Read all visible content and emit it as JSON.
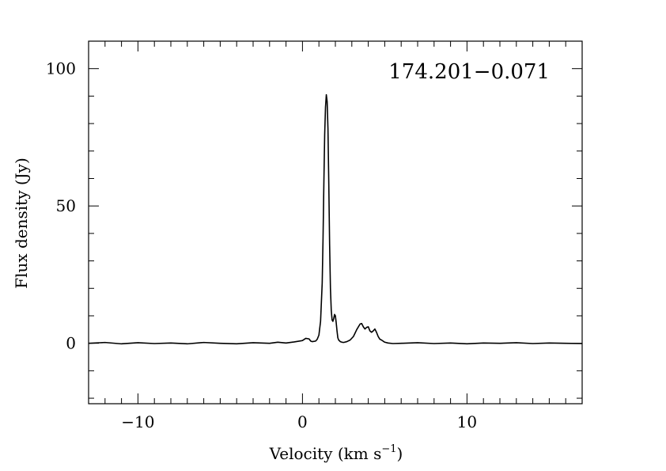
{
  "chart_data": {
    "type": "line",
    "title": "174.201−0.071",
    "xlabel": "Velocity (km s",
    "xlabel_sup": "−1",
    "xlabel_close": ")",
    "ylabel": "Flux density (Jy)",
    "xlim": [
      -13,
      17
    ],
    "ylim": [
      -22,
      110
    ],
    "x_major_ticks": [
      -10,
      0,
      10
    ],
    "x_tick_labels": [
      "−10",
      "0",
      "10"
    ],
    "x_minor_step": 1,
    "y_major_ticks": [
      0,
      50,
      100
    ],
    "y_tick_labels": [
      "0",
      "50",
      "100"
    ],
    "y_minor_step": 10,
    "grid": false,
    "series": [
      {
        "color": "#000000",
        "x": [
          -13.0,
          -12.0,
          -11.0,
          -10.0,
          -9.0,
          -8.0,
          -7.0,
          -6.0,
          -5.0,
          -4.0,
          -3.0,
          -2.0,
          -1.5,
          -1.0,
          -0.5,
          0.0,
          0.2,
          0.4,
          0.5,
          0.6,
          0.8,
          0.9,
          1.0,
          1.1,
          1.2,
          1.25,
          1.3,
          1.35,
          1.4,
          1.45,
          1.5,
          1.55,
          1.6,
          1.65,
          1.7,
          1.75,
          1.8,
          1.85,
          1.9,
          1.95,
          2.0,
          2.05,
          2.1,
          2.15,
          2.2,
          2.3,
          2.4,
          2.5,
          2.7,
          2.9,
          3.1,
          3.3,
          3.5,
          3.6,
          3.7,
          3.8,
          3.9,
          4.0,
          4.1,
          4.2,
          4.3,
          4.4,
          4.5,
          4.6,
          4.7,
          4.8,
          5.0,
          5.2,
          5.5,
          6.0,
          7.0,
          8.0,
          9.0,
          10.0,
          11.0,
          12.0,
          13.0,
          14.0,
          15.0,
          16.0,
          17.0
        ],
        "y": [
          0.0,
          0.3,
          -0.2,
          0.2,
          -0.1,
          0.1,
          -0.2,
          0.3,
          0.0,
          -0.2,
          0.2,
          0.0,
          0.4,
          0.1,
          0.5,
          1.0,
          1.8,
          1.6,
          0.8,
          0.6,
          0.8,
          1.5,
          3.0,
          8.0,
          22.0,
          38.0,
          58.0,
          76.0,
          86.0,
          90.5,
          88.0,
          78.0,
          58.0,
          36.0,
          20.0,
          12.0,
          8.5,
          8.0,
          9.0,
          10.5,
          10.0,
          7.5,
          4.5,
          2.0,
          1.2,
          0.6,
          0.4,
          0.3,
          0.6,
          1.2,
          2.5,
          5.0,
          7.0,
          7.2,
          6.0,
          5.2,
          5.8,
          6.0,
          4.5,
          4.0,
          4.5,
          5.2,
          4.0,
          2.5,
          1.5,
          1.2,
          0.4,
          0.1,
          -0.1,
          0.0,
          0.2,
          -0.1,
          0.1,
          -0.2,
          0.1,
          0.0,
          0.2,
          -0.1,
          0.1,
          0.0,
          -0.1
        ]
      }
    ]
  }
}
